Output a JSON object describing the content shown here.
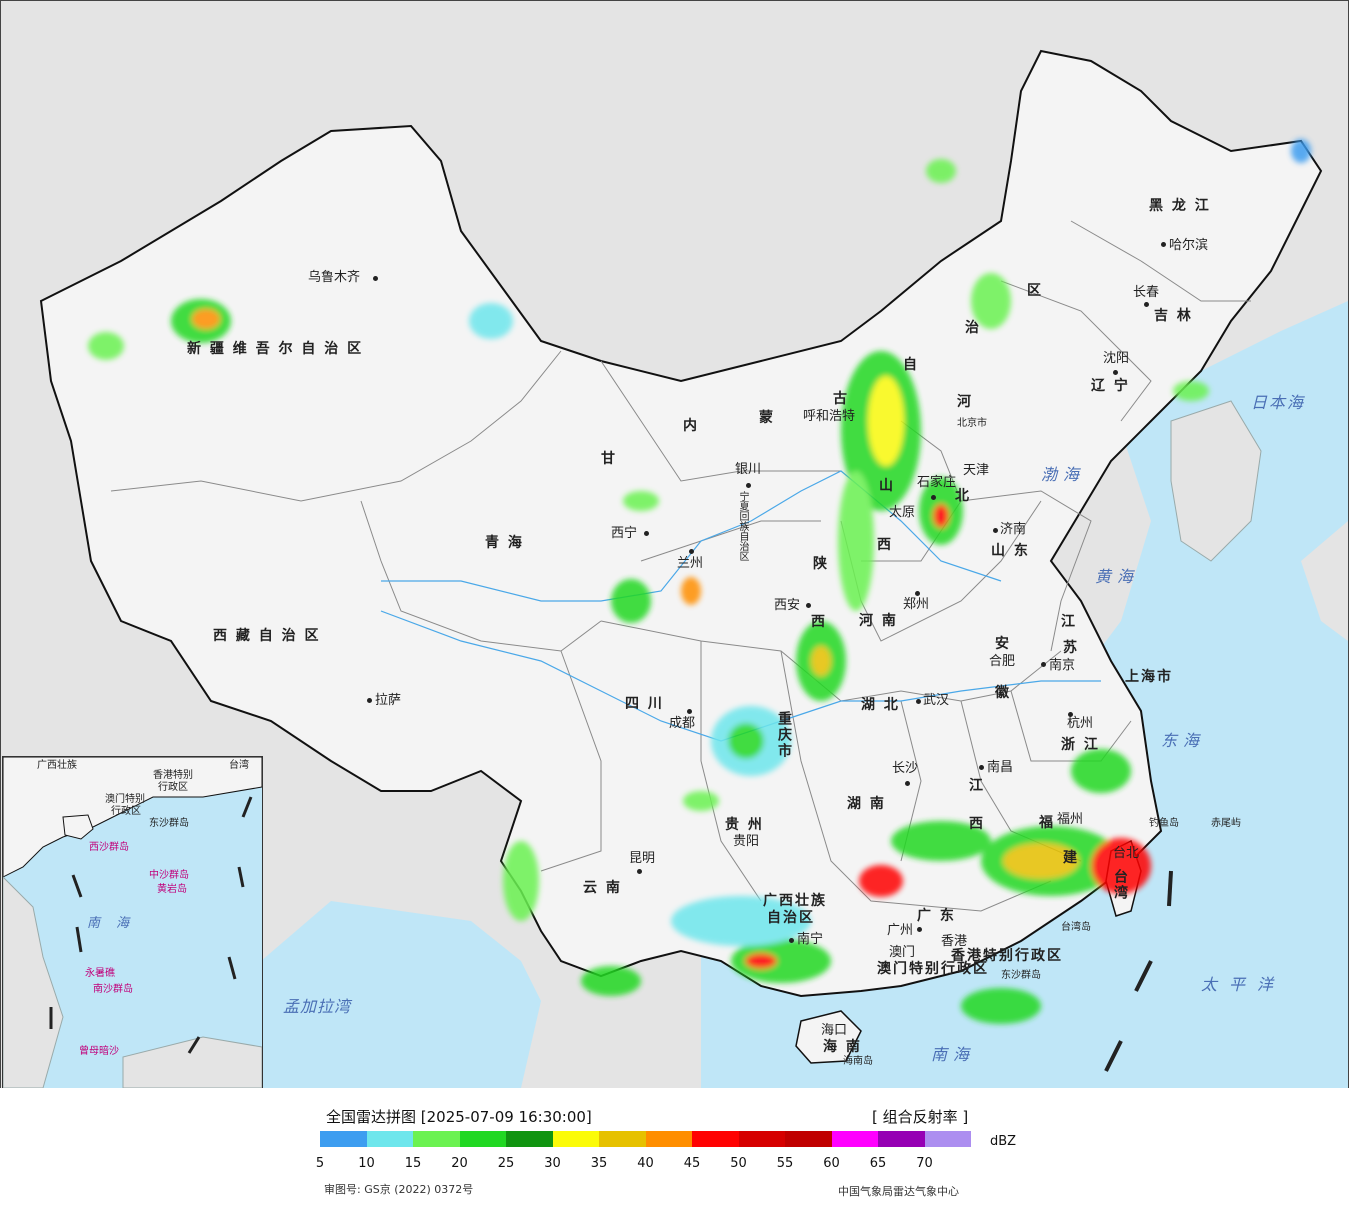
{
  "map": {
    "colors": {
      "land": "#f4f4f4",
      "foreign": "#e4e4e4",
      "sea": "#bfe6f7",
      "border": "#111111",
      "province": "#8a8a8a",
      "river": "#4aa8e8"
    },
    "regions": [
      {
        "id": "xinjiang",
        "label": "新 疆 维 吾 尔 自 治 区"
      },
      {
        "id": "xizang",
        "label": "西 藏 自 治 区"
      },
      {
        "id": "qinghai",
        "label": "青  海"
      },
      {
        "id": "gansu",
        "label": "甘"
      },
      {
        "id": "neimenggu1",
        "label": "内"
      },
      {
        "id": "neimenggu2",
        "label": "蒙"
      },
      {
        "id": "neimenggu3",
        "label": "古"
      },
      {
        "id": "neimenggu4",
        "label": "自"
      },
      {
        "id": "neimenggu5",
        "label": "治"
      },
      {
        "id": "neimenggu6",
        "label": "区"
      },
      {
        "id": "heilongjiang",
        "label": "黑 龙 江"
      },
      {
        "id": "jilin",
        "label": "吉 林"
      },
      {
        "id": "liaoning",
        "label": "辽 宁"
      },
      {
        "id": "hebei",
        "label": "河"
      },
      {
        "id": "hebei2",
        "label": "北"
      },
      {
        "id": "shanxi1",
        "label": "山"
      },
      {
        "id": "shanxi2",
        "label": "西"
      },
      {
        "id": "shandong",
        "label": "山 东"
      },
      {
        "id": "henan",
        "label": "河 南"
      },
      {
        "id": "shaanxi1",
        "label": "陕"
      },
      {
        "id": "shaanxi2",
        "label": "西"
      },
      {
        "id": "sichuan",
        "label": "四   川"
      },
      {
        "id": "hubei",
        "label": "湖   北"
      },
      {
        "id": "hunan",
        "label": "湖   南"
      },
      {
        "id": "jiangxi1",
        "label": "江"
      },
      {
        "id": "jiangxi2",
        "label": "西"
      },
      {
        "id": "anhui1",
        "label": "安"
      },
      {
        "id": "anhui2",
        "label": "徽"
      },
      {
        "id": "jiangsu1",
        "label": "江"
      },
      {
        "id": "jiangsu2",
        "label": "苏"
      },
      {
        "id": "zhejiang",
        "label": "浙 江"
      },
      {
        "id": "fujian1",
        "label": "福"
      },
      {
        "id": "fujian2",
        "label": "建"
      },
      {
        "id": "guizhou",
        "label": "贵   州"
      },
      {
        "id": "yunnan",
        "label": "云   南"
      },
      {
        "id": "guangxi1",
        "label": "广西壮族"
      },
      {
        "id": "guangxi2",
        "label": "自治区"
      },
      {
        "id": "guangdong",
        "label": "广   东"
      },
      {
        "id": "hainan",
        "label": "海 南"
      },
      {
        "id": "ningxia",
        "label": "宁夏回族自治区"
      },
      {
        "id": "chongqing",
        "label": "重庆市"
      },
      {
        "id": "shanghai",
        "label": "上海市"
      },
      {
        "id": "taiwan",
        "label": "台湾"
      },
      {
        "id": "hk",
        "label": "香港特别行政区"
      },
      {
        "id": "macau",
        "label": "澳门特别行政区"
      },
      {
        "id": "tianjin",
        "label": "天津"
      },
      {
        "id": "beijing",
        "label": "北京市"
      }
    ],
    "cities": [
      {
        "id": "urumqi",
        "label": "乌鲁木齐"
      },
      {
        "id": "lhasa",
        "label": "拉萨"
      },
      {
        "id": "xining",
        "label": "西宁"
      },
      {
        "id": "lanzhou",
        "label": "兰州"
      },
      {
        "id": "yinchuan",
        "label": "银川"
      },
      {
        "id": "hohhot",
        "label": "呼和浩特"
      },
      {
        "id": "harbin",
        "label": "哈尔滨"
      },
      {
        "id": "changchun",
        "label": "长春"
      },
      {
        "id": "shenyang",
        "label": "沈阳"
      },
      {
        "id": "shijiazhuang",
        "label": "石家庄"
      },
      {
        "id": "taiyuan",
        "label": "太原"
      },
      {
        "id": "jinan",
        "label": "济南"
      },
      {
        "id": "zhengzhou",
        "label": "郑州"
      },
      {
        "id": "xian",
        "label": "西安"
      },
      {
        "id": "chengdu",
        "label": "成都"
      },
      {
        "id": "wuhan",
        "label": "武汉"
      },
      {
        "id": "hefei",
        "label": "合肥"
      },
      {
        "id": "nanjing",
        "label": "南京"
      },
      {
        "id": "hangzhou",
        "label": "杭州"
      },
      {
        "id": "changsha",
        "label": "长沙"
      },
      {
        "id": "nanchang",
        "label": "南昌"
      },
      {
        "id": "fuzhou",
        "label": "福州"
      },
      {
        "id": "guiyang",
        "label": "贵阳"
      },
      {
        "id": "kunming",
        "label": "昆明"
      },
      {
        "id": "nanning",
        "label": "南宁"
      },
      {
        "id": "guangzhou",
        "label": "广州"
      },
      {
        "id": "macau_c",
        "label": "澳门"
      },
      {
        "id": "hongkong_c",
        "label": "香港"
      },
      {
        "id": "haikou",
        "label": "海口"
      },
      {
        "id": "taipei",
        "label": "台北"
      }
    ],
    "seas": [
      {
        "id": "bohai",
        "label": "渤海"
      },
      {
        "id": "huanghai",
        "label": "黄海"
      },
      {
        "id": "donghai",
        "label": "东海"
      },
      {
        "id": "nanhai",
        "label": "南海"
      },
      {
        "id": "riben",
        "label": "日本海"
      },
      {
        "id": "taiping",
        "label": "太平洋"
      },
      {
        "id": "bengal",
        "label": "孟加拉湾"
      }
    ],
    "islands": [
      {
        "id": "diaoyu",
        "label": "钓鱼岛"
      },
      {
        "id": "chiwei",
        "label": "赤尾屿"
      },
      {
        "id": "taiwan_dao",
        "label": "台湾岛"
      },
      {
        "id": "dongsha",
        "label": "东沙群岛"
      },
      {
        "id": "hainan_dao",
        "label": "海南岛"
      }
    ],
    "inset": {
      "labels": [
        "广西壮族",
        "香港特别",
        "行政区",
        "澳门特别",
        "行政区",
        "西沙群岛",
        "中沙群岛",
        "黄岩岛",
        "南 海",
        "永暑礁",
        "南沙群岛",
        "曾母暗沙",
        "台湾",
        "东沙群岛"
      ]
    }
  },
  "legend": {
    "title": "全国雷达拼图 [2025-07-09 16:30:00]",
    "product": "[ 组合反射率 ]",
    "unit": "dBZ",
    "colors": [
      "#3d9df0",
      "#6ee6ec",
      "#6bf251",
      "#21d822",
      "#109410",
      "#fbfb08",
      "#e6c100",
      "#ff8e00",
      "#ff0202",
      "#d60000",
      "#c00000",
      "#ff00ff",
      "#9600b4",
      "#ac8ef0"
    ],
    "ticks": [
      "5",
      "10",
      "15",
      "20",
      "25",
      "30",
      "35",
      "40",
      "45",
      "50",
      "55",
      "60",
      "65",
      "70"
    ],
    "approval": "审图号: GS京 (2022) 0372号",
    "agency": "中国气象局雷达气象中心"
  }
}
